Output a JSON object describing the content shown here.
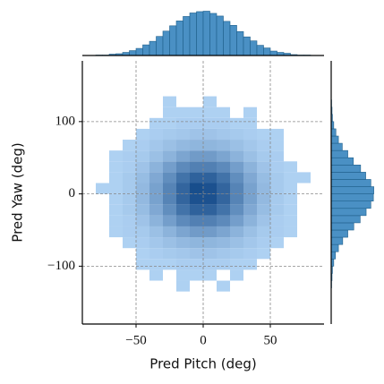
{
  "chart_data": {
    "type": "jointhist",
    "xlabel": "Pred Pitch (deg)",
    "ylabel": "Pred Yaw (deg)",
    "xlim": [
      -90,
      90
    ],
    "ylim": [
      -180,
      184
    ],
    "xticks": [
      {
        "value": -50,
        "label": "−50"
      },
      0,
      50
    ],
    "yticks": [
      {
        "value": -100,
        "label": "−100"
      },
      0,
      100
    ],
    "grid": true,
    "color": "#2a7fc6",
    "x_bins": [
      -80,
      -70,
      -60,
      -50,
      -40,
      -30,
      -20,
      -10,
      0,
      10,
      20,
      30,
      40,
      50,
      60,
      70,
      80
    ],
    "y_bins": [
      -135,
      -120,
      -105,
      -90,
      -75,
      -60,
      -45,
      -30,
      -15,
      0,
      15,
      30,
      45,
      60,
      75,
      90,
      105,
      120,
      135
    ],
    "counts": [
      [
        0,
        0,
        0,
        0,
        0,
        0,
        1,
        0,
        0,
        1,
        0,
        0,
        0,
        0,
        0,
        0
      ],
      [
        0,
        0,
        0,
        0,
        1,
        0,
        1,
        1,
        1,
        0,
        1,
        0,
        0,
        0,
        0,
        0
      ],
      [
        0,
        0,
        0,
        1,
        1,
        1,
        2,
        2,
        2,
        2,
        1,
        1,
        0,
        0,
        0,
        0
      ],
      [
        0,
        0,
        0,
        1,
        2,
        3,
        4,
        5,
        5,
        4,
        3,
        2,
        1,
        0,
        0,
        0
      ],
      [
        0,
        0,
        1,
        2,
        4,
        6,
        8,
        9,
        9,
        8,
        6,
        4,
        2,
        1,
        0,
        0
      ],
      [
        0,
        1,
        2,
        3,
        6,
        10,
        14,
        17,
        17,
        14,
        10,
        6,
        3,
        2,
        1,
        0
      ],
      [
        0,
        1,
        2,
        5,
        10,
        16,
        22,
        25,
        25,
        22,
        16,
        10,
        5,
        2,
        1,
        0
      ],
      [
        0,
        1,
        3,
        7,
        13,
        21,
        29,
        34,
        34,
        29,
        21,
        13,
        7,
        3,
        1,
        0
      ],
      [
        0,
        1,
        3,
        8,
        15,
        24,
        33,
        39,
        39,
        33,
        24,
        15,
        8,
        3,
        1,
        0
      ],
      [
        1,
        1,
        3,
        8,
        15,
        24,
        33,
        40,
        39,
        33,
        24,
        15,
        8,
        3,
        1,
        0
      ],
      [
        0,
        1,
        3,
        7,
        13,
        21,
        29,
        34,
        34,
        29,
        21,
        13,
        7,
        3,
        1,
        1
      ],
      [
        0,
        1,
        2,
        5,
        10,
        16,
        22,
        25,
        25,
        22,
        16,
        10,
        5,
        2,
        1,
        0
      ],
      [
        0,
        1,
        2,
        3,
        6,
        10,
        14,
        17,
        17,
        14,
        10,
        6,
        3,
        2,
        0,
        0
      ],
      [
        0,
        0,
        1,
        2,
        4,
        6,
        8,
        9,
        9,
        8,
        6,
        4,
        2,
        1,
        0,
        0
      ],
      [
        0,
        0,
        0,
        1,
        2,
        3,
        4,
        5,
        5,
        4,
        3,
        2,
        1,
        1,
        0,
        0
      ],
      [
        0,
        0,
        0,
        0,
        1,
        1,
        2,
        2,
        2,
        2,
        1,
        1,
        0,
        0,
        0,
        0
      ],
      [
        0,
        0,
        0,
        0,
        0,
        1,
        1,
        1,
        1,
        1,
        0,
        1,
        0,
        0,
        0,
        0
      ],
      [
        0,
        0,
        0,
        0,
        0,
        1,
        0,
        0,
        1,
        0,
        0,
        0,
        0,
        0,
        0,
        0
      ]
    ],
    "x_marginal": {
      "bins": [
        -90,
        -85,
        -80,
        -75,
        -70,
        -65,
        -60,
        -55,
        -50,
        -45,
        -40,
        -35,
        -30,
        -25,
        -20,
        -15,
        -10,
        -5,
        0,
        5,
        10,
        15,
        20,
        25,
        30,
        35,
        40,
        45,
        50,
        55,
        60,
        65,
        70,
        75,
        80,
        85,
        90
      ],
      "counts": [
        0,
        0,
        1,
        1,
        3,
        4,
        7,
        11,
        16,
        24,
        32,
        43,
        55,
        67,
        78,
        88,
        96,
        99,
        100,
        95,
        89,
        77,
        68,
        54,
        42,
        33,
        23,
        17,
        10,
        7,
        5,
        2,
        1,
        1,
        0,
        0
      ],
      "lim": [
        0,
        105
      ]
    },
    "y_marginal": {
      "bins": [
        -180,
        -170,
        -160,
        -150,
        -140,
        -130,
        -120,
        -110,
        -100,
        -90,
        -80,
        -70,
        -60,
        -50,
        -40,
        -30,
        -20,
        -10,
        0,
        10,
        20,
        30,
        40,
        50,
        60,
        70,
        80,
        90,
        100,
        110,
        120,
        130,
        140,
        150,
        160,
        170,
        180
      ],
      "counts": [
        0,
        0,
        0,
        0,
        0,
        1,
        2,
        3,
        6,
        10,
        17,
        27,
        39,
        53,
        68,
        82,
        93,
        99,
        100,
        93,
        81,
        69,
        52,
        39,
        26,
        17,
        11,
        6,
        3,
        2,
        1,
        0,
        0,
        0,
        0,
        0
      ],
      "lim": [
        0,
        105
      ]
    },
    "marginal_color": "#4a90c4"
  }
}
